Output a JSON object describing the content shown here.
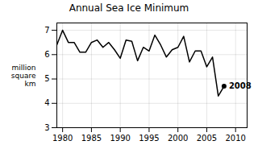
{
  "chart_data": {
    "type": "line",
    "title": "Annual Sea Ice Minimum",
    "y_label": "million\nsquare\nkm",
    "x": [
      1979,
      1980,
      1981,
      1982,
      1983,
      1984,
      1985,
      1986,
      1987,
      1988,
      1989,
      1990,
      1991,
      1992,
      1993,
      1994,
      1995,
      1996,
      1997,
      1998,
      1999,
      2000,
      2001,
      2002,
      2003,
      2004,
      2005,
      2006,
      2007,
      2008
    ],
    "values": [
      6.4,
      7.0,
      6.5,
      6.5,
      6.1,
      6.1,
      6.5,
      6.6,
      6.3,
      6.5,
      6.2,
      5.85,
      6.6,
      6.55,
      5.75,
      6.3,
      6.15,
      6.8,
      6.4,
      5.9,
      6.2,
      6.3,
      6.75,
      5.7,
      6.15,
      6.15,
      5.5,
      5.9,
      4.3,
      4.7
    ],
    "annotations": [
      {
        "x": 2008,
        "y": 4.7,
        "text": "2008"
      }
    ],
    "xlim": [
      1979,
      2012
    ],
    "ylim": [
      3,
      7.3
    ],
    "xticks": [
      1980,
      1985,
      1990,
      1995,
      2000,
      2005,
      2010
    ],
    "yticks": [
      3,
      4,
      5,
      6,
      7
    ],
    "grid": true
  }
}
